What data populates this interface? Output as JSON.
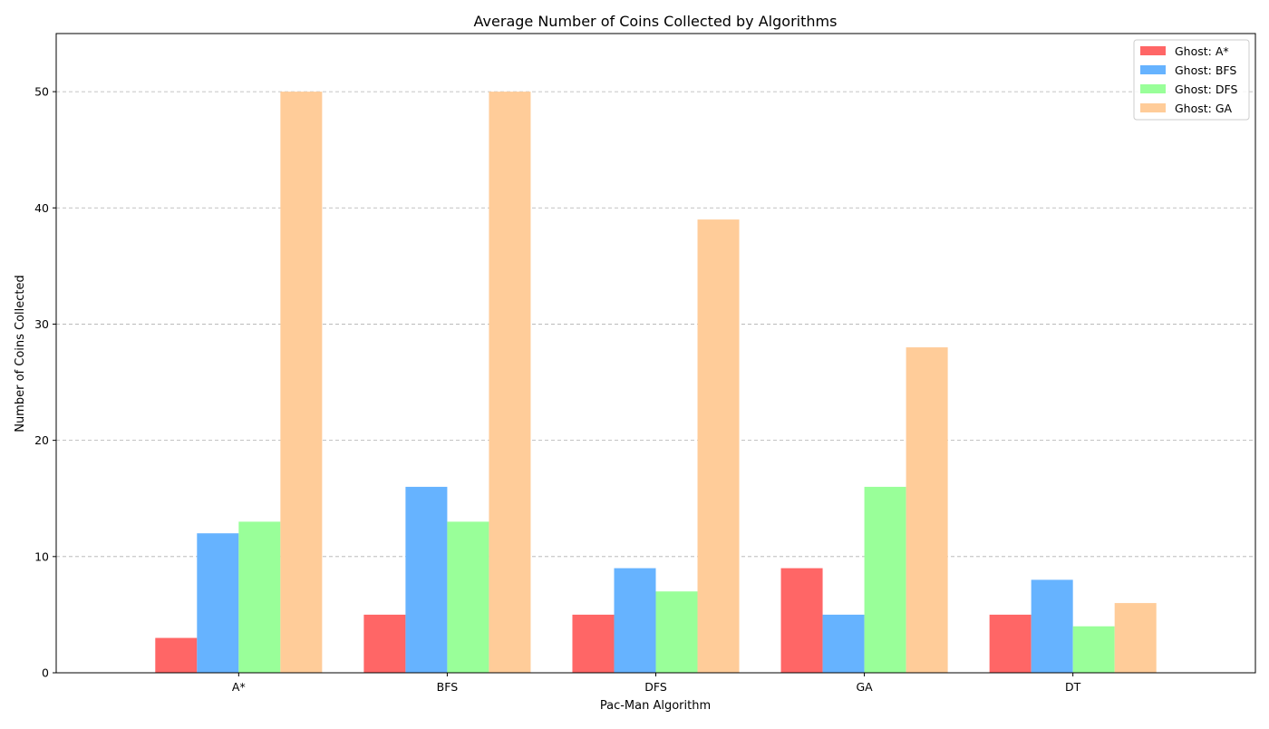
{
  "chart_data": {
    "type": "bar",
    "title": "Average Number of Coins Collected by Algorithms",
    "xlabel": "Pac-Man Algorithm",
    "ylabel": "Number of Coins Collected",
    "categories": [
      "A*",
      "BFS",
      "DFS",
      "GA",
      "DT"
    ],
    "series": [
      {
        "name": "Ghost: A*",
        "color": "#ff6666",
        "values": [
          3,
          5,
          5,
          9,
          5
        ]
      },
      {
        "name": "Ghost: BFS",
        "color": "#66b3ff",
        "values": [
          12,
          16,
          9,
          5,
          8
        ]
      },
      {
        "name": "Ghost: DFS",
        "color": "#99ff99",
        "values": [
          13,
          13,
          7,
          16,
          4
        ]
      },
      {
        "name": "Ghost: GA",
        "color": "#ffcc99",
        "values": [
          50,
          50,
          39,
          28,
          6
        ]
      }
    ],
    "ylim": [
      0,
      55
    ],
    "yticks": [
      0,
      10,
      20,
      30,
      40,
      50
    ],
    "grid": "y-dashed",
    "legend_position": "top-right"
  }
}
